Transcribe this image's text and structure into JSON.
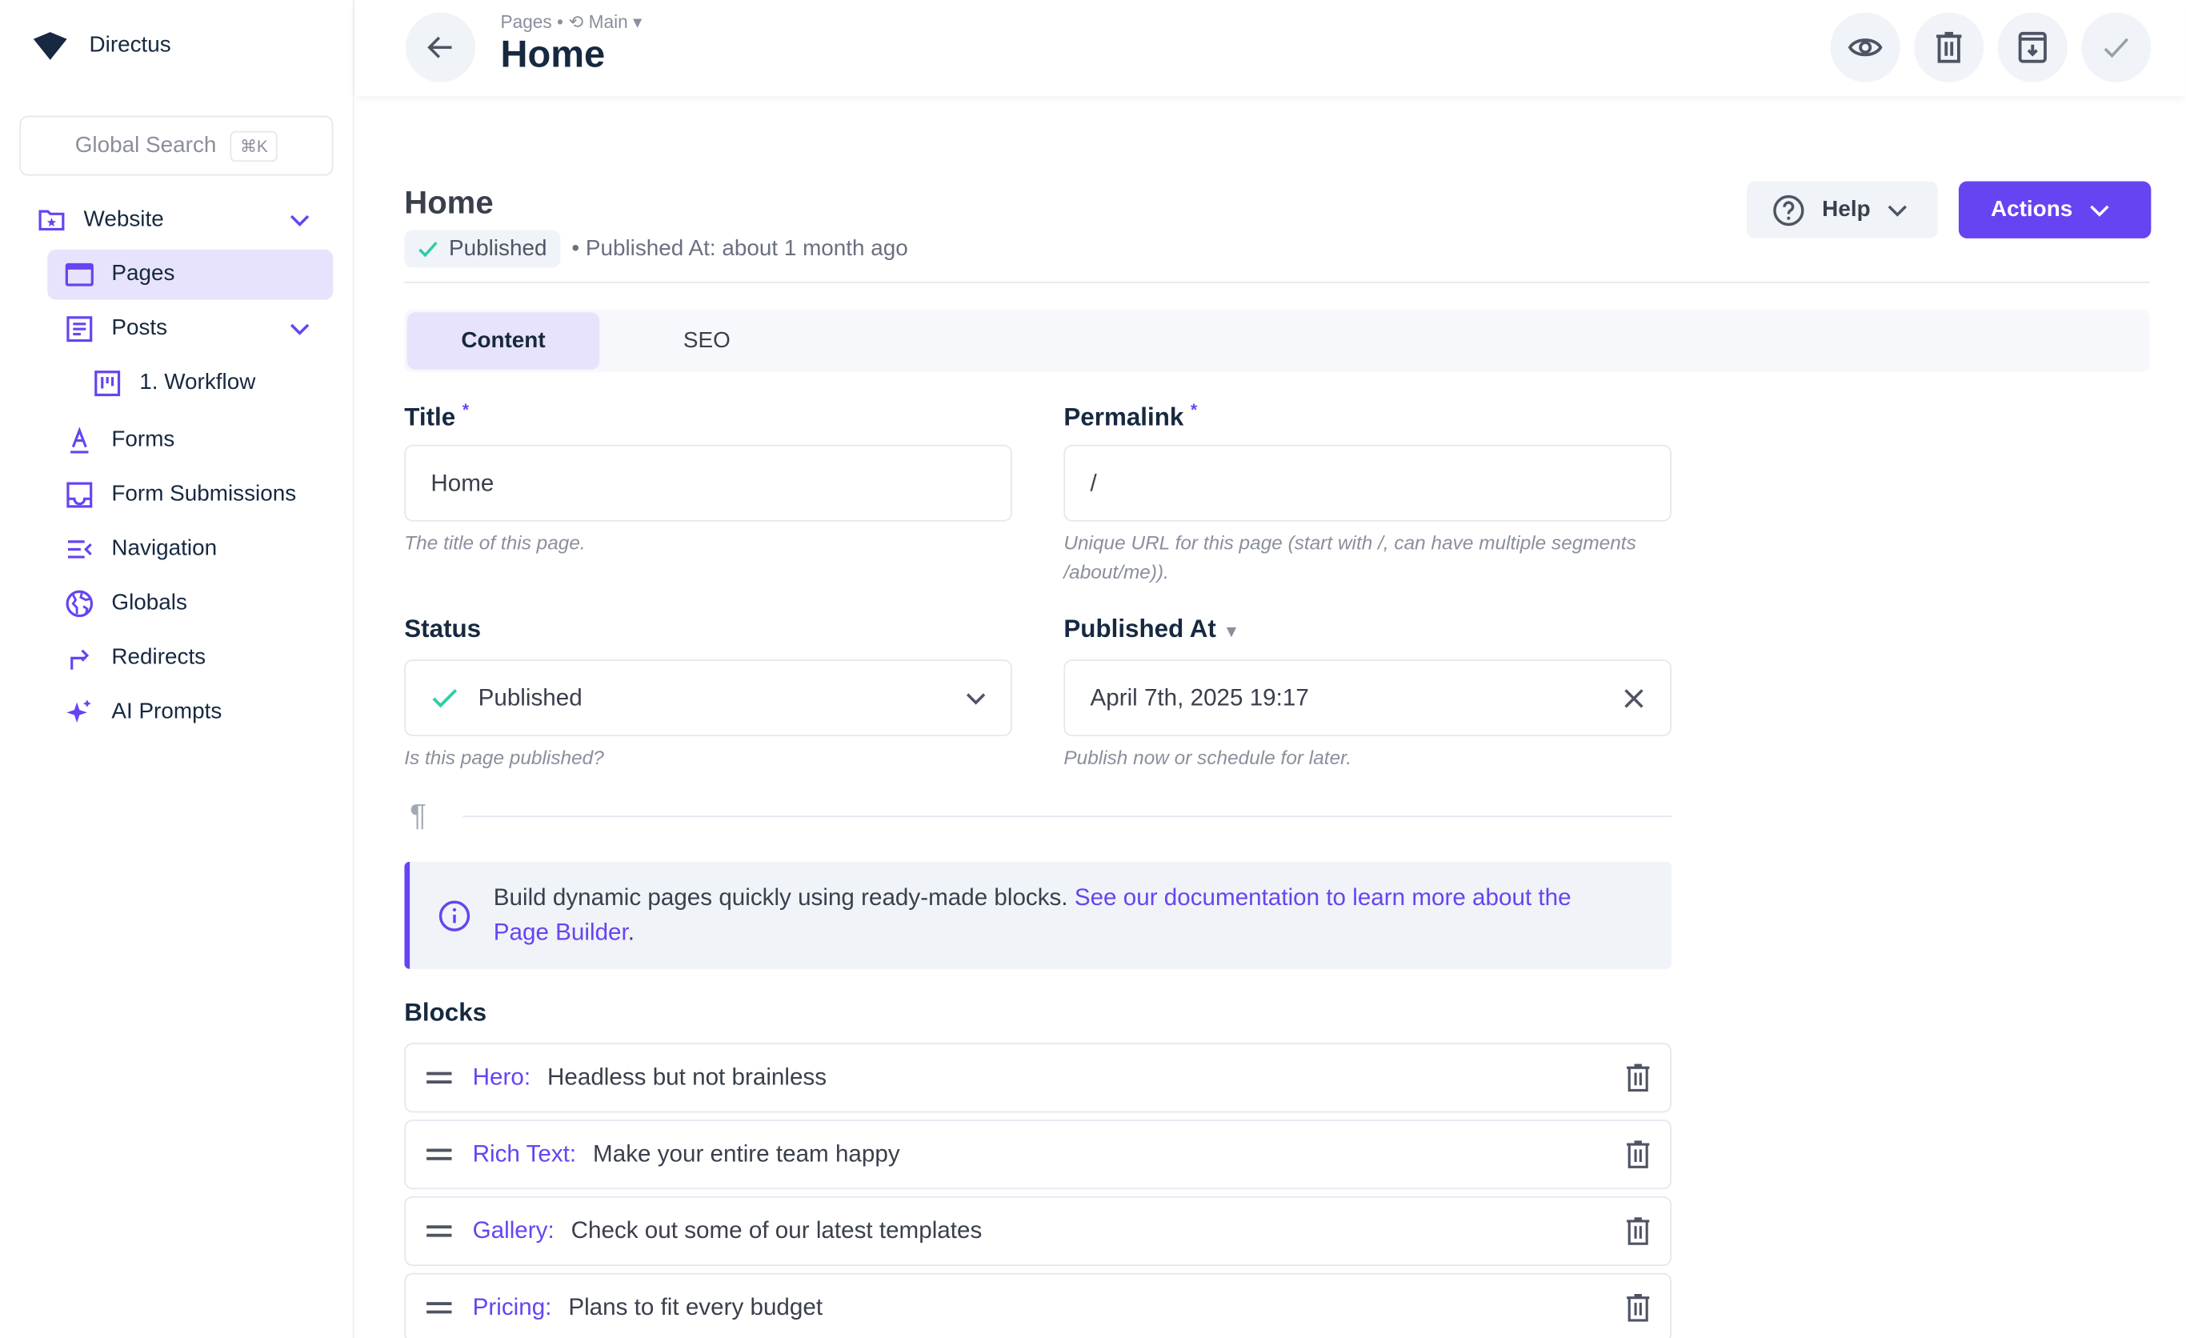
{
  "app": {
    "name": "Directus",
    "search_placeholder": "Global Search",
    "search_shortcut": "⌘K"
  },
  "sidebar": {
    "items": [
      {
        "label": "Website",
        "icon": "folder-star-icon"
      },
      {
        "label": "Pages",
        "icon": "window-icon",
        "active": true
      },
      {
        "label": "Posts",
        "icon": "article-icon"
      },
      {
        "label": "1. Workflow",
        "icon": "kanban-icon"
      },
      {
        "label": "Forms",
        "icon": "text-format-icon"
      },
      {
        "label": "Form Submissions",
        "icon": "inbox-icon"
      },
      {
        "label": "Navigation",
        "icon": "menu-open-icon"
      },
      {
        "label": "Globals",
        "icon": "globe-icon"
      },
      {
        "label": "Redirects",
        "icon": "turn-right-icon"
      },
      {
        "label": "AI Prompts",
        "icon": "sparkles-icon"
      }
    ]
  },
  "header": {
    "collection": "Pages",
    "sep": "•",
    "version": "Main",
    "title": "Home"
  },
  "page": {
    "title": "Home",
    "status": "Published",
    "published_at": "• Published At: about 1 month ago",
    "help": "Help",
    "actions": "Actions"
  },
  "tabs": [
    "Content",
    "SEO"
  ],
  "fields": {
    "title": {
      "label": "Title",
      "required": "*",
      "value": "Home",
      "hint": "The title of this page."
    },
    "permalink": {
      "label": "Permalink",
      "required": "*",
      "value": "/",
      "hint": "Unique URL for this page (start with /, can have multiple segments /about/me))."
    },
    "status": {
      "label": "Status",
      "value": "Published",
      "hint": "Is this page published?"
    },
    "published_at": {
      "label": "Published At",
      "value": "April 7th, 2025 19:17",
      "hint": "Publish now or schedule for later."
    }
  },
  "notice": {
    "text": "Build dynamic pages quickly using ready-made blocks. ",
    "link": "See our documentation to learn more about the Page Builder",
    "end": "."
  },
  "blocks": {
    "label": "Blocks",
    "items": [
      {
        "type": "Hero:",
        "title": "Headless but not brainless"
      },
      {
        "type": "Rich Text:",
        "title": "Make your entire team happy"
      },
      {
        "type": "Gallery:",
        "title": "Check out some of our latest templates"
      },
      {
        "type": "Pricing:",
        "title": "Plans to fit every budget"
      }
    ]
  },
  "colors": {
    "accent": "#6644f2",
    "success": "#2ecda7",
    "text": "#172940"
  }
}
